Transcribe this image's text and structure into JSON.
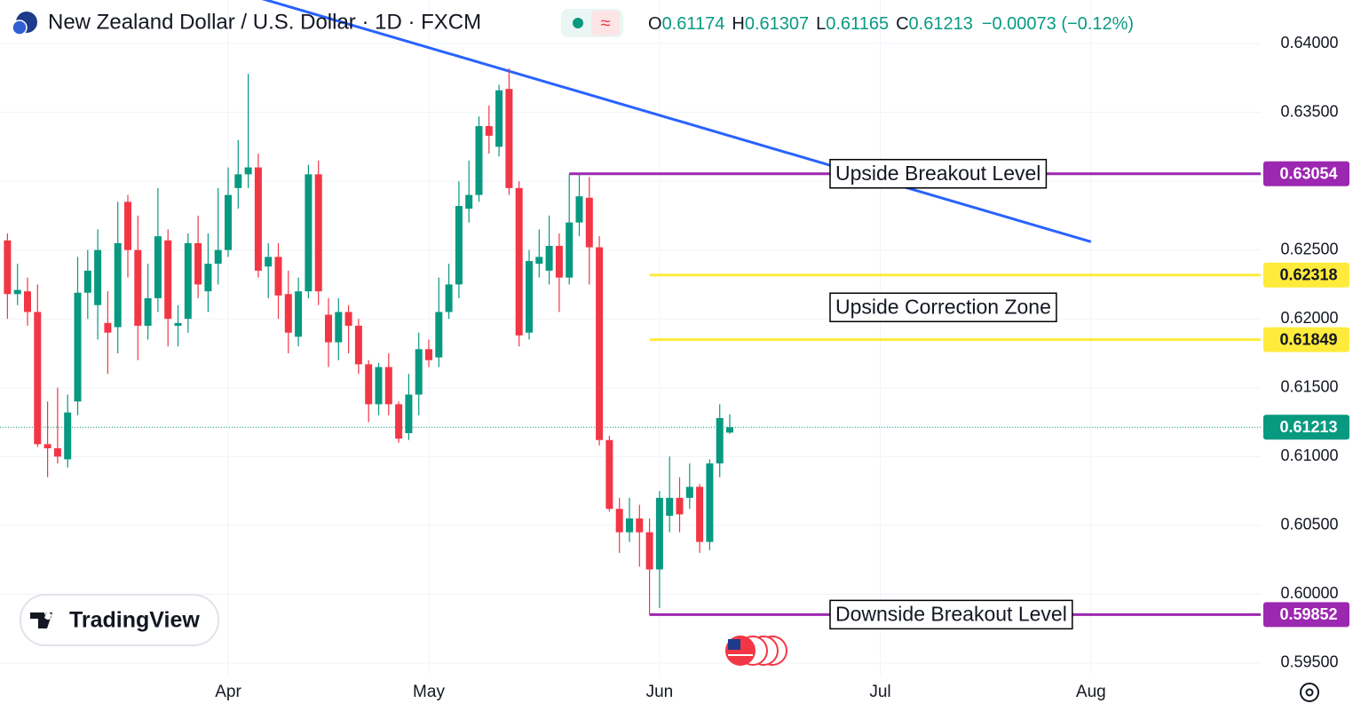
{
  "header": {
    "title": "New Zealand Dollar / U.S. Dollar · 1D · FXCM",
    "o": "O",
    "h": "H",
    "l": "L",
    "c": "C",
    "change": "−0.00073 (−0.12%)"
  },
  "logo": "TradingView",
  "chart_data": {
    "type": "candlestick",
    "categories": [
      null,
      null,
      null,
      null,
      null,
      null,
      null,
      null,
      null,
      null,
      null,
      null,
      null,
      null,
      null,
      null,
      null,
      null,
      null,
      null,
      null,
      null,
      "Apr",
      null,
      null,
      null,
      null,
      null,
      null,
      null,
      null,
      null,
      null,
      null,
      null,
      null,
      null,
      null,
      null,
      null,
      null,
      null,
      "May",
      null,
      null,
      null,
      null,
      null,
      null,
      null,
      null,
      null,
      null,
      null,
      null,
      null,
      null,
      null,
      null,
      null,
      null,
      null,
      null,
      null,
      null,
      "Jun",
      null,
      null,
      null,
      null,
      null,
      null,
      null,
      null,
      null,
      null,
      null,
      null,
      null,
      null,
      null,
      null,
      null,
      null,
      null,
      null,
      null,
      "Jul",
      null,
      null,
      null,
      null,
      null,
      null,
      null,
      null,
      null,
      null,
      null,
      null,
      null,
      null,
      null,
      null,
      null,
      null,
      null,
      null,
      "Aug"
    ],
    "open": [
      0.6257,
      0.6218,
      0.622,
      0.6205,
      0.6109,
      0.6106,
      0.6098,
      0.614,
      0.6219,
      0.621,
      0.6197,
      0.6194,
      0.6285,
      0.625,
      0.6195,
      0.6215,
      0.6257,
      0.6195,
      0.62,
      0.6255,
      0.622,
      0.624,
      0.625,
      0.6295,
      0.6305,
      0.631,
      0.6238,
      0.6245,
      0.6218,
      0.6187,
      0.622,
      0.6305,
      0.6203,
      0.6183,
      0.6205,
      0.6195,
      0.6167,
      0.6138,
      0.6165,
      0.6138,
      0.6117,
      0.6145,
      0.6178,
      0.6172,
      0.6205,
      0.6225,
      0.628,
      0.629,
      0.634,
      0.6325,
      0.6367,
      0.6295,
      0.619,
      0.624,
      0.6235,
      0.6253,
      0.623,
      0.627,
      0.6288,
      0.6252,
      0.6112,
      0.6062,
      0.6045,
      0.6055,
      0.6045,
      0.6018,
      0.6057,
      0.607,
      0.607,
      0.6078,
      0.6038,
      0.6095,
      0.61174,
      null,
      null,
      null,
      null,
      null,
      null,
      null,
      null,
      null,
      null,
      null,
      null,
      null,
      null,
      null,
      null,
      null,
      null,
      null,
      null,
      null,
      null,
      null,
      null,
      null,
      null,
      null,
      null,
      null,
      null,
      null,
      null,
      null,
      null,
      null,
      null
    ],
    "high": [
      0.6262,
      0.624,
      0.623,
      0.6225,
      0.614,
      0.615,
      0.6145,
      0.6245,
      0.625,
      0.6265,
      0.622,
      0.6285,
      0.629,
      0.6275,
      0.624,
      0.6295,
      0.6265,
      0.621,
      0.6262,
      0.6275,
      0.6262,
      0.6295,
      0.631,
      0.633,
      0.6378,
      0.632,
      0.6255,
      0.6255,
      0.6235,
      0.623,
      0.6312,
      0.6315,
      0.6215,
      0.6215,
      0.621,
      0.62,
      0.617,
      0.6168,
      0.6175,
      0.614,
      0.616,
      0.619,
      0.6185,
      0.623,
      0.624,
      0.63,
      0.6315,
      0.6347,
      0.6355,
      0.637,
      0.6382,
      0.63,
      0.625,
      0.6265,
      0.6275,
      0.6262,
      0.6305,
      0.6305,
      0.6303,
      0.626,
      0.6115,
      0.607,
      0.607,
      0.6065,
      0.6055,
      0.6075,
      0.61,
      0.6085,
      0.6095,
      0.608,
      0.6098,
      0.6138,
      0.61307,
      null,
      null,
      null,
      null,
      null,
      null,
      null,
      null,
      null,
      null,
      null,
      null,
      null,
      null,
      null,
      null,
      null,
      null,
      null,
      null,
      null,
      null,
      null,
      null,
      null,
      null,
      null,
      null,
      null,
      null,
      null,
      null,
      null,
      null,
      null,
      null
    ],
    "low": [
      0.62,
      0.621,
      0.6195,
      0.6107,
      0.6085,
      0.6095,
      0.6092,
      0.613,
      0.62,
      0.6185,
      0.616,
      0.6175,
      0.623,
      0.617,
      0.6185,
      0.6205,
      0.618,
      0.618,
      0.619,
      0.6215,
      0.6205,
      0.6225,
      0.6245,
      0.628,
      0.6295,
      0.623,
      0.6215,
      0.62,
      0.6175,
      0.618,
      0.6215,
      0.621,
      0.6165,
      0.617,
      0.6175,
      0.616,
      0.6125,
      0.613,
      0.613,
      0.611,
      0.6112,
      0.613,
      0.6165,
      0.6165,
      0.62,
      0.6215,
      0.627,
      0.6285,
      0.632,
      0.6318,
      0.629,
      0.618,
      0.6185,
      0.623,
      0.6225,
      0.6205,
      0.6225,
      0.626,
      0.6225,
      0.6108,
      0.606,
      0.603,
      0.6038,
      0.602,
      0.5985,
      0.599,
      0.6045,
      0.6045,
      0.6062,
      0.603,
      0.6032,
      0.6085,
      0.61165,
      null,
      null,
      null,
      null,
      null,
      null,
      null,
      null,
      null,
      null,
      null,
      null,
      null,
      null,
      null,
      null,
      null,
      null,
      null,
      null,
      null,
      null,
      null,
      null,
      null,
      null,
      null,
      null,
      null,
      null,
      null,
      null,
      null,
      null,
      null,
      null
    ],
    "close": [
      0.6218,
      0.6221,
      0.6205,
      0.6109,
      0.6106,
      0.61,
      0.6132,
      0.6219,
      0.6235,
      0.625,
      0.619,
      0.6255,
      0.625,
      0.6195,
      0.6215,
      0.626,
      0.62,
      0.6197,
      0.6255,
      0.6225,
      0.624,
      0.625,
      0.629,
      0.6305,
      0.631,
      0.6235,
      0.6245,
      0.6217,
      0.619,
      0.622,
      0.6305,
      0.622,
      0.6183,
      0.6205,
      0.6195,
      0.6167,
      0.6138,
      0.6165,
      0.6138,
      0.6113,
      0.6145,
      0.6178,
      0.617,
      0.6205,
      0.6225,
      0.6282,
      0.629,
      0.634,
      0.6333,
      0.6366,
      0.6295,
      0.6188,
      0.6242,
      0.6245,
      0.6253,
      0.623,
      0.627,
      0.6289,
      0.6252,
      0.6112,
      0.6062,
      0.6045,
      0.6055,
      0.6045,
      0.6018,
      0.607,
      0.607,
      0.6058,
      0.6078,
      0.6038,
      0.6095,
      0.6128,
      0.61213,
      null,
      null,
      null,
      null,
      null,
      null,
      null,
      null,
      null,
      null,
      null,
      null,
      null,
      null,
      null,
      null,
      null,
      null,
      null,
      null,
      null,
      null,
      null,
      null,
      null,
      null,
      null,
      null,
      null,
      null,
      null,
      null,
      null,
      null,
      null,
      null
    ],
    "up_color": "#089981",
    "down_color": "#f23645",
    "ylim": [
      0.59416,
      0.64316
    ],
    "yticks": [
      {
        "value": 0.595,
        "label": "0.59500"
      },
      {
        "value": 0.6,
        "label": "0.60000"
      },
      {
        "value": 0.605,
        "label": "0.60500"
      },
      {
        "value": 0.61,
        "label": "0.61000"
      },
      {
        "value": 0.615,
        "label": "0.61500"
      },
      {
        "value": 0.62,
        "label": "0.62000"
      },
      {
        "value": 0.625,
        "label": "0.62500"
      },
      {
        "value": 0.63,
        "label": "0.63000"
      },
      {
        "value": 0.635,
        "label": "0.63500"
      },
      {
        "value": 0.64,
        "label": "0.64000"
      }
    ],
    "grid": true,
    "levels": [
      {
        "value": 0.63054,
        "color": "#9c27b0",
        "text_color": "#ffffff",
        "start": 56,
        "label": "Upside Breakout Level"
      },
      {
        "value": 0.62318,
        "color": "#ffeb3b",
        "text_color": "#131722",
        "start": 64
      },
      {
        "value": 0.61849,
        "color": "#ffeb3b",
        "text_color": "#131722",
        "start": 64
      },
      {
        "value": 0.59852,
        "color": "#9c27b0",
        "text_color": "#ffffff",
        "start": 64,
        "label": "Downside Breakout Level"
      }
    ],
    "zone_label": "Upside Correction Zone",
    "trendline": {
      "color": "#2962ff",
      "points": [
        [
          20,
          0.6444
        ],
        [
          108,
          0.6256
        ]
      ]
    }
  }
}
